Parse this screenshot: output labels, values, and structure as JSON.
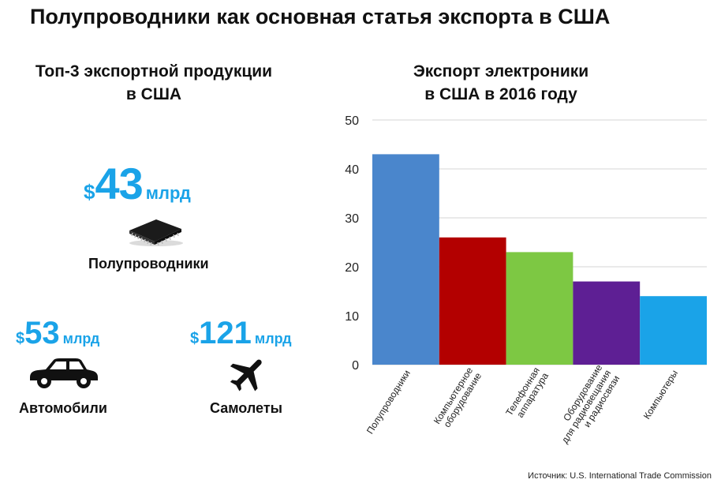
{
  "title": "Полупроводники как основная статья экспорта в США",
  "left_panel": {
    "title_line1": "Топ-3 экспортной продукции",
    "title_line2": "в США",
    "items": [
      {
        "currency": "$",
        "amount": "43",
        "unit": "млрд",
        "label": "Полупроводники",
        "icon": "chip-icon"
      },
      {
        "currency": "$",
        "amount": "53",
        "unit": "млрд",
        "label": "Автомобили",
        "icon": "car-icon"
      },
      {
        "currency": "$",
        "amount": "121",
        "unit": "млрд",
        "label": "Самолеты",
        "icon": "airplane-icon"
      }
    ],
    "accent_color": "#1aa3e8"
  },
  "chart_data": {
    "type": "bar",
    "title_line1": "Экспорт электроники",
    "title_line2": "в США в 2016 году",
    "categories": [
      "Полупроводники",
      "Компьютерное оборудование",
      "Телефонная аппаратура",
      "Оборудование для радиовещания и радиосвязи",
      "Компьютеры"
    ],
    "category_lines": [
      [
        "Полупроводники"
      ],
      [
        "Компьютерное",
        "оборудование"
      ],
      [
        "Телефонная",
        "аппаратура"
      ],
      [
        "Оборудование",
        "для радиовещания",
        "и радиосвязи"
      ],
      [
        "Компьютеры"
      ]
    ],
    "values": [
      43,
      26,
      23,
      17,
      14
    ],
    "colors": [
      "#4a86cc",
      "#b30000",
      "#7dc843",
      "#5e1f94",
      "#1aa3e8"
    ],
    "ylim": [
      0,
      50
    ],
    "yticks": [
      "0",
      "10",
      "20",
      "30",
      "40",
      "50"
    ],
    "grid": true
  },
  "source": "Источник: U.S. International Trade Commission"
}
